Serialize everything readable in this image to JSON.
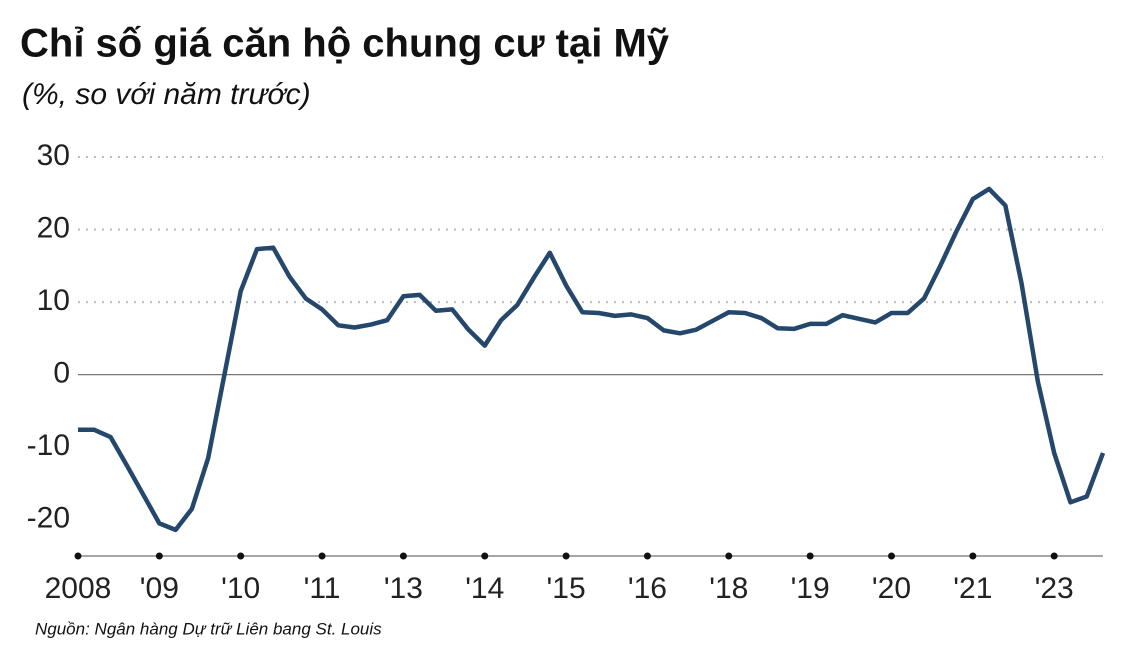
{
  "chart_data": {
    "type": "line",
    "title": "Chỉ số giá căn hộ chung cư tại Mỹ",
    "subtitle": "(%, so với năm trước)",
    "source": "Nguồn: Ngân hàng Dự trữ Liên bang St. Louis",
    "color": "#24476b",
    "x": [
      0,
      1,
      2,
      3,
      4,
      5,
      6,
      7,
      8,
      9,
      10,
      11,
      12,
      13,
      14,
      15,
      16,
      17,
      18,
      19,
      20,
      21,
      22,
      23,
      24,
      25,
      26,
      27,
      28,
      29,
      30,
      31,
      32,
      33,
      34,
      35,
      36,
      37,
      38,
      39,
      40,
      41,
      42,
      43,
      44,
      45,
      46,
      47,
      48,
      49,
      50,
      51,
      52,
      53,
      54,
      55,
      56,
      57,
      58,
      59,
      60,
      61,
      62,
      63
    ],
    "values": [
      -7.6,
      -7.6,
      -8.6,
      -12.5,
      -16.5,
      -20.5,
      -21.4,
      -18.5,
      -11.5,
      0,
      11.5,
      17.3,
      17.5,
      13.5,
      10.5,
      9,
      6.8,
      6.5,
      6.9,
      7.5,
      10.8,
      11,
      8.8,
      9,
      6.2,
      4,
      7.5,
      9.6,
      13.3,
      16.8,
      12.3,
      8.6,
      8.5,
      8.1,
      8.3,
      7.8,
      6.1,
      5.7,
      6.2,
      7.4,
      8.6,
      8.5,
      7.8,
      6.4,
      6.3,
      7,
      7,
      8.2,
      7.7,
      7.2,
      8.5,
      8.5,
      10.5,
      15,
      19.8,
      24.2,
      25.6,
      23.3,
      12.5,
      -1,
      -10.8,
      -17.6,
      -16.8,
      -10.8
    ],
    "xlim": [
      0,
      63
    ],
    "xticks": [
      {
        "value": 0,
        "label": "2008"
      },
      {
        "value": 5,
        "label": "'09"
      },
      {
        "value": 10,
        "label": "'10"
      },
      {
        "value": 15,
        "label": "'11"
      },
      {
        "value": 20,
        "label": "'13"
      },
      {
        "value": 25,
        "label": "'14"
      },
      {
        "value": 30,
        "label": "'15"
      },
      {
        "value": 35,
        "label": "'16"
      },
      {
        "value": 40,
        "label": "'18"
      },
      {
        "value": 45,
        "label": "'19"
      },
      {
        "value": 50,
        "label": "'20"
      },
      {
        "value": 55,
        "label": "'21"
      },
      {
        "value": 60,
        "label": "'23"
      }
    ],
    "ylim": [
      -25,
      30
    ],
    "yticks": [
      -20,
      -10,
      0,
      10,
      20,
      30
    ],
    "grid": true
  }
}
